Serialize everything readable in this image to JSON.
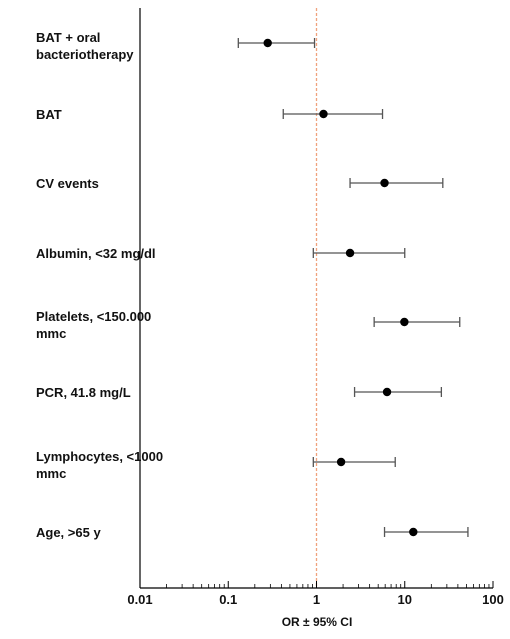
{
  "chart_data": {
    "type": "forest",
    "xlabel": "OR ± 95% CI",
    "x_scale": "log",
    "xlim": [
      0.01,
      100
    ],
    "x_ticks": [
      "0.01",
      "0.1",
      "1",
      "10",
      "100"
    ],
    "reference_line": 1,
    "reference_line_color": "#f0a27c",
    "rows": [
      {
        "label": [
          "BAT + oral",
          "bacteriotherapy"
        ],
        "or": 0.28,
        "ci_low": 0.13,
        "ci_high": 0.95
      },
      {
        "label": [
          "BAT"
        ],
        "or": 1.2,
        "ci_low": 0.42,
        "ci_high": 5.6
      },
      {
        "label": [
          "CV events"
        ],
        "or": 5.9,
        "ci_low": 2.4,
        "ci_high": 27
      },
      {
        "label": [
          "Albumin, <32 mg/dl"
        ],
        "or": 2.4,
        "ci_low": 0.92,
        "ci_high": 10
      },
      {
        "label": [
          "Platelets, <150.000",
          "mmc"
        ],
        "or": 9.9,
        "ci_low": 4.5,
        "ci_high": 42
      },
      {
        "label": [
          "PCR, 41.8 mg/L"
        ],
        "or": 6.3,
        "ci_low": 2.7,
        "ci_high": 26
      },
      {
        "label": [
          "Lymphocytes, <1000",
          "mmc"
        ],
        "or": 1.9,
        "ci_low": 0.92,
        "ci_high": 7.8
      },
      {
        "label": [
          "Age, >65 y"
        ],
        "or": 12.5,
        "ci_low": 5.9,
        "ci_high": 52
      }
    ]
  }
}
